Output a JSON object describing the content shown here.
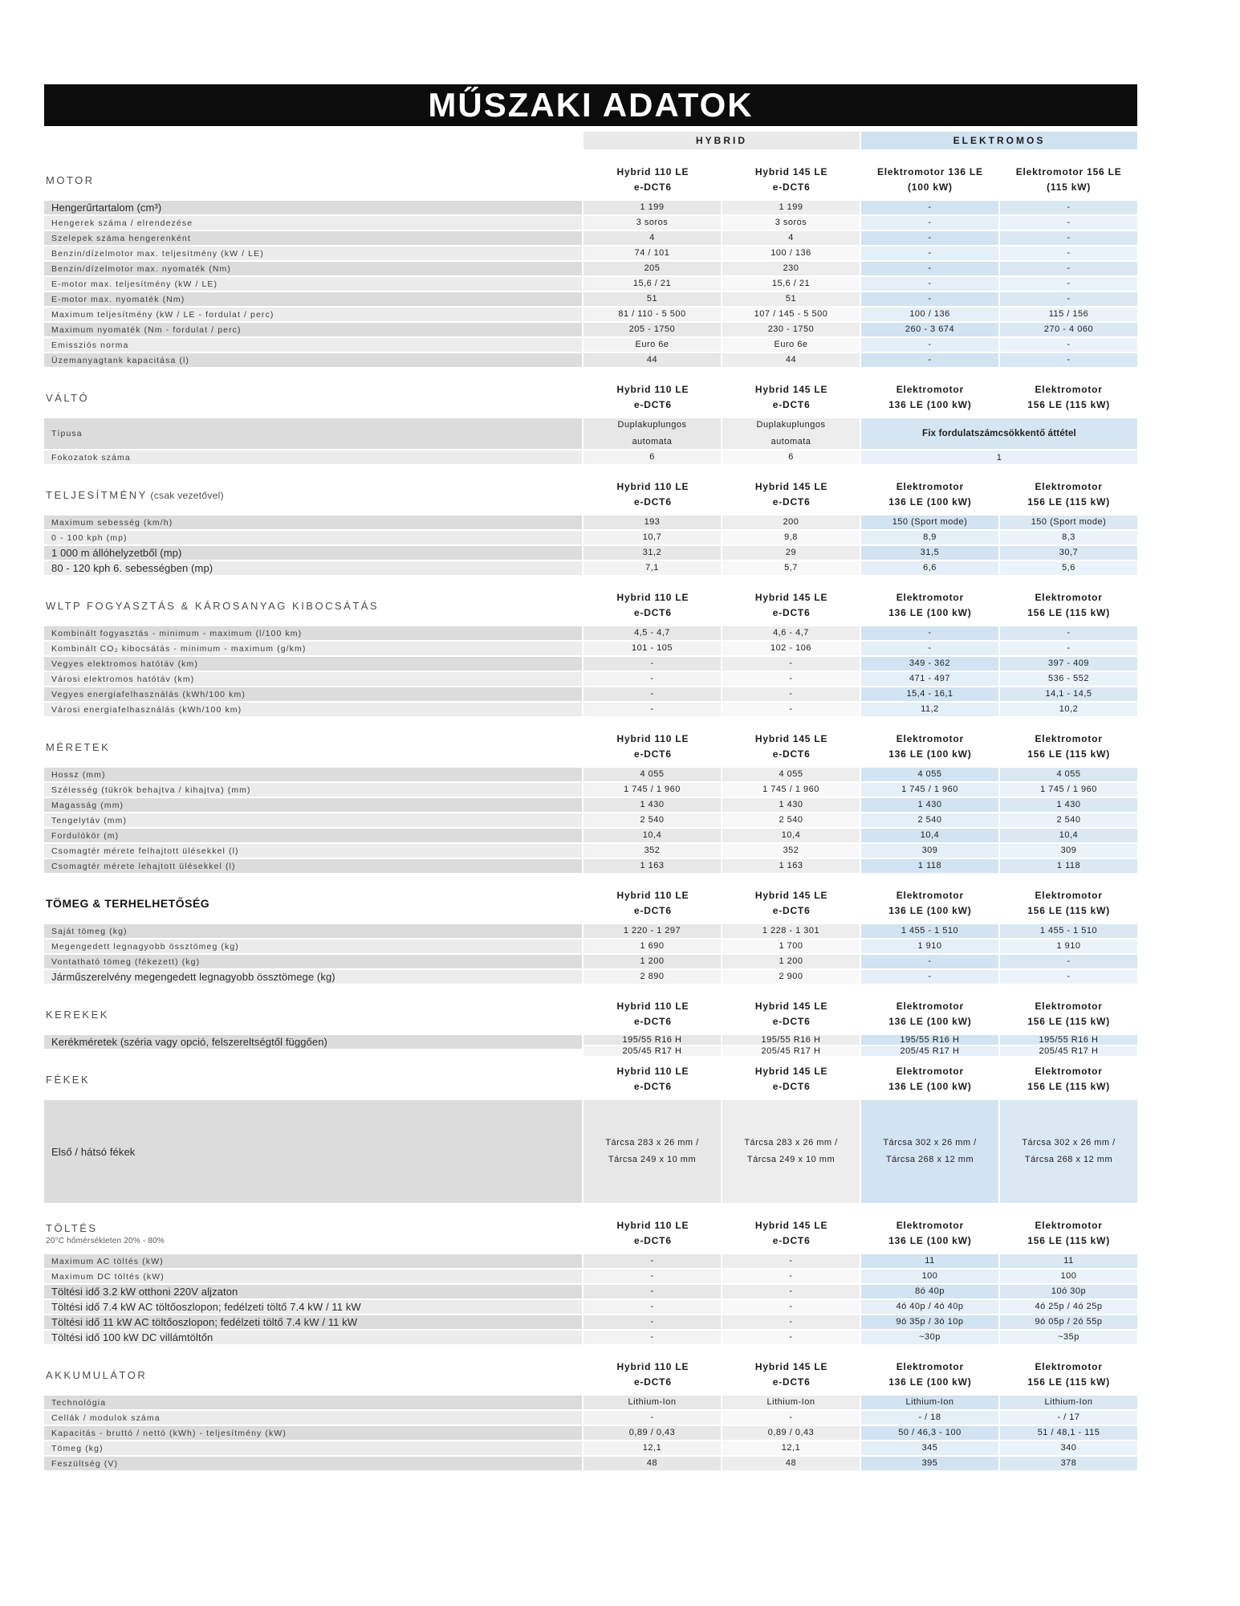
{
  "page": {
    "title": "MŰSZAKI ADATOK"
  },
  "groups": {
    "hybrid": "HYBRID",
    "electric": "ELEKTROMOS"
  },
  "colors": {
    "banner_bg": "#0c0c0c",
    "hybrid_bar_bg": "#e9e9e9",
    "electric_bar_bg": "#cfe2f2",
    "label_row_bg": "#dcdcdc",
    "electric_cell_bg": "#d2e3f1"
  },
  "column_headers": {
    "a": [
      [
        "Hybrid 110 LE",
        "e-DCT6"
      ],
      [
        "Hybrid 145 LE",
        "e-DCT6"
      ],
      [
        "Elektromotor 136 LE",
        "(100 kW)"
      ],
      [
        "Elektromotor 156 LE",
        "(115 kW)"
      ]
    ],
    "b": [
      [
        "Hybrid 110 LE",
        "e-DCT6"
      ],
      [
        "Hybrid 145 LE",
        "e-DCT6"
      ],
      [
        "Elektromotor",
        "136 LE (100 kW)"
      ],
      [
        "Elektromotor",
        "156 LE (115 kW)"
      ]
    ]
  },
  "sections": [
    {
      "id": "motor",
      "title": "MOTOR",
      "header_variant": "a",
      "rows": [
        {
          "label": "Hengerűrtartalom (cm³)",
          "style": "plain",
          "cells": [
            "1 199",
            "1 199",
            "-",
            "-"
          ]
        },
        {
          "label": "Hengerek száma / elrendezése",
          "style": "spaced",
          "cells": [
            "3 soros",
            "3 soros",
            "-",
            "-"
          ]
        },
        {
          "label": "Szelepek száma hengerenként",
          "style": "spaced",
          "cells": [
            "4",
            "4",
            "-",
            "-"
          ]
        },
        {
          "label": "Benzin/dízelmotor max. teljesítmény (kW / LE)",
          "style": "spaced",
          "cells": [
            "74 / 101",
            "100 / 136",
            "-",
            "-"
          ]
        },
        {
          "label": "Benzin/dízelmotor max. nyomaték (Nm)",
          "style": "spaced",
          "cells": [
            "205",
            "230",
            "-",
            "-"
          ]
        },
        {
          "label": "E-motor max. teljesítmény (kW / LE)",
          "style": "spaced",
          "cells": [
            "15,6 / 21",
            "15,6 / 21",
            "-",
            "-"
          ]
        },
        {
          "label": "E-motor max. nyomaték (Nm)",
          "style": "spaced",
          "cells": [
            "51",
            "51",
            "-",
            "-"
          ]
        },
        {
          "label": "Maximum teljesítmény (kW / LE - fordulat / perc)",
          "style": "spaced",
          "cells": [
            "81 / 110 - 5 500",
            "107 / 145 - 5 500",
            "100 / 136",
            "115 / 156"
          ]
        },
        {
          "label": "Maximum nyomaték (Nm - fordulat / perc)",
          "style": "spaced",
          "cells": [
            "205 - 1750",
            "230 - 1750",
            "260 - 3 674",
            "270 - 4 060"
          ]
        },
        {
          "label": "Emissziós norma",
          "style": "spaced",
          "cells": [
            "Euro 6e",
            "Euro 6e",
            "-",
            "-"
          ]
        },
        {
          "label": "Üzemanyagtank kapacitása (l)",
          "style": "spaced",
          "cells": [
            "44",
            "44",
            "-",
            "-"
          ]
        }
      ]
    },
    {
      "id": "valto",
      "title": "VÁLTÓ",
      "header_variant": "b",
      "rows": [
        {
          "type": "tall",
          "h": 38,
          "label": "Típusa",
          "style": "spaced",
          "cells": [
            [
              "Duplakuplungos",
              "automata"
            ],
            [
              "Duplakuplungos",
              "automata"
            ]
          ],
          "span": "Fix fordulatszámcsökkentő áttétel",
          "span_bold": true
        },
        {
          "type": "span",
          "label": "Fokozatok száma",
          "style": "spaced",
          "cells": [
            "6",
            "6"
          ],
          "span": "1"
        }
      ]
    },
    {
      "id": "teljesitmeny",
      "title": "TELJESÍTMÉNY",
      "title_suffix": "(csak vezetővel)",
      "header_variant": "b",
      "rows": [
        {
          "label": "Maximum sebesség (km/h)",
          "style": "spaced",
          "cells": [
            "193",
            "200",
            "150 (Sport mode)",
            "150 (Sport mode)"
          ]
        },
        {
          "label": "0 - 100 kph (mp)",
          "style": "spaced",
          "cells": [
            "10,7",
            "9,8",
            "8,9",
            "8,3"
          ]
        },
        {
          "label": "1 000 m állóhelyzetből (mp)",
          "style": "plain",
          "cells": [
            "31,2",
            "29",
            "31,5",
            "30,7"
          ]
        },
        {
          "label": "80 - 120 kph 6. sebességben (mp)",
          "style": "plain",
          "cells": [
            "7,1",
            "5,7",
            "6,6",
            "5,6"
          ]
        }
      ]
    },
    {
      "id": "wltp",
      "title": "WLTP FOGYASZTÁS & KÁROSANYAG KIBOCSÁTÁS",
      "header_variant": "b",
      "rows": [
        {
          "label": "Kombinált fogyasztás - minimum - maximum (l/100 km)",
          "style": "spaced",
          "cells": [
            "4,5 - 4,7",
            "4,6 - 4,7",
            "-",
            "-"
          ]
        },
        {
          "label": "Kombinált CO₂ kibocsátás - minimum - maximum (g/km)",
          "style": "spaced",
          "cells": [
            "101 - 105",
            "102 - 106",
            "-",
            "-"
          ]
        },
        {
          "label": "Vegyes elektromos hatótáv (km)",
          "style": "spaced",
          "cells": [
            "-",
            "-",
            "349 - 362",
            "397 - 409"
          ]
        },
        {
          "label": "Városi elektromos hatótáv (km)",
          "style": "spaced",
          "cells": [
            "-",
            "-",
            "471 - 497",
            "536 - 552"
          ]
        },
        {
          "label": "Vegyes energiafelhasználás (kWh/100 km)",
          "style": "spaced",
          "cells": [
            "-",
            "-",
            "15,4 - 16,1",
            "14,1 - 14,5"
          ]
        },
        {
          "label": "Városi energiafelhasználás (kWh/100 km)",
          "style": "spaced",
          "cells": [
            "-",
            "-",
            "11,2",
            "10,2"
          ]
        }
      ]
    },
    {
      "id": "meretek",
      "title": "MÉRETEK",
      "header_variant": "b",
      "rows": [
        {
          "label": "Hossz (mm)",
          "style": "spaced",
          "cells": [
            "4 055",
            "4 055",
            "4 055",
            "4 055"
          ]
        },
        {
          "label": "Szélesség (tükrök behajtva / kihajtva) (mm)",
          "style": "spaced",
          "cells": [
            "1 745 / 1 960",
            "1 745 / 1 960",
            "1 745 / 1 960",
            "1 745 / 1 960"
          ]
        },
        {
          "label": "Magasság (mm)",
          "style": "spaced",
          "cells": [
            "1 430",
            "1 430",
            "1 430",
            "1 430"
          ]
        },
        {
          "label": "Tengelytáv (mm)",
          "style": "spaced",
          "cells": [
            "2 540",
            "2 540",
            "2 540",
            "2 540"
          ]
        },
        {
          "label": "Fordulókör (m)",
          "style": "spaced",
          "cells": [
            "10,4",
            "10,4",
            "10,4",
            "10,4"
          ]
        },
        {
          "label": "Csomagtér mérete felhajtott ülésekkel (l)",
          "style": "spaced",
          "cells": [
            "352",
            "352",
            "309",
            "309"
          ]
        },
        {
          "label": "Csomagtér mérete lehajtott ülésekkel (l)",
          "style": "spaced",
          "cells": [
            "1 163",
            "1 163",
            "1 118",
            "1 118"
          ]
        }
      ]
    },
    {
      "id": "tomeg",
      "title": "TÖMEG & TERHELHETŐSÉG",
      "bold": true,
      "header_variant": "b",
      "rows": [
        {
          "label": "Saját tömeg (kg)",
          "style": "spaced",
          "cells": [
            "1 220 - 1 297",
            "1 228 - 1 301",
            "1 455 - 1 510",
            "1 455 - 1 510"
          ]
        },
        {
          "label": "Megengedett legnagyobb össztömeg (kg)",
          "style": "spaced",
          "cells": [
            "1 690",
            "1 700",
            "1 910",
            "1 910"
          ]
        },
        {
          "label": "Vontatható tömeg (fékezett) (kg)",
          "style": "spaced",
          "cells": [
            "1 200",
            "1 200",
            "-",
            "-"
          ]
        },
        {
          "label": "Járműszerelvény megengedett legnagyobb össztömege (kg)",
          "style": "plain",
          "cells": [
            "2 890",
            "2 900",
            "-",
            "-"
          ]
        }
      ]
    },
    {
      "id": "kerekek",
      "title": "KEREKEK",
      "header_variant": "b",
      "rows": [
        {
          "type": "lines2",
          "label": "Kerékméretek (széria vagy opció, felszereltségtől függően)",
          "style": "plain",
          "cells": [
            [
              "195/55 R16 H",
              "205/45 R17 H"
            ],
            [
              "195/55 R16 H",
              "205/45 R17 H"
            ],
            [
              "195/55 R16 H",
              "205/45 R17 H"
            ],
            [
              "195/55 R16 H",
              "205/45 R17 H"
            ]
          ]
        }
      ]
    },
    {
      "id": "fekek",
      "title": "FÉKEK",
      "header_variant": "b",
      "rows": [
        {
          "type": "tall",
          "h": 128,
          "label": "Első / hátsó fékek",
          "style": "plain",
          "cells": [
            [
              "Tárcsa 283 x 26 mm /",
              "Tárcsa 249 x 10 mm"
            ],
            [
              "Tárcsa 283 x 26 mm /",
              "Tárcsa 249 x 10 mm"
            ],
            [
              "Tárcsa 302 x 26 mm /",
              "Tárcsa 268 x 12 mm"
            ],
            [
              "Tárcsa 302 x 26 mm /",
              "Tárcsa 268 x 12 mm"
            ]
          ]
        }
      ]
    },
    {
      "id": "toltes",
      "title": "TÖLTÉS",
      "subtitle": "20°C hőmérsékleten 20% - 80%",
      "header_variant": "b",
      "rows": [
        {
          "label": "Maximum AC töltés (kW)",
          "style": "spaced",
          "cells": [
            "-",
            "-",
            "11",
            "11"
          ]
        },
        {
          "label": "Maximum DC töltés (kW)",
          "style": "spaced",
          "cells": [
            "-",
            "-",
            "100",
            "100"
          ]
        },
        {
          "label": "Töltési idő 3.2 kW otthoni 220V aljzaton",
          "style": "plain",
          "cells": [
            "-",
            "-",
            "8ó 40p",
            "10ó 30p"
          ]
        },
        {
          "label": "Töltési idő 7.4 kW AC töltőoszlopon; fedélzeti töltő 7.4 kW / 11 kW",
          "style": "plain",
          "cells": [
            "-",
            "-",
            "4ó 40p / 4ó 40p",
            "4ó 25p / 4ó 25p"
          ]
        },
        {
          "label": "Töltési idő 11 kW AC töltőoszlopon; fedélzeti töltő 7.4 kW / 11 kW",
          "style": "plain",
          "cells": [
            "-",
            "-",
            "9ó 35p / 3ó 10p",
            "9ó 05p / 2ó 55p"
          ]
        },
        {
          "label": "Töltési idő 100 kW DC villámtöltőn",
          "style": "plain",
          "cells": [
            "-",
            "-",
            "~30p",
            "~35p"
          ]
        }
      ]
    },
    {
      "id": "akkumulator",
      "title": "AKKUMULÁTOR",
      "header_variant": "b",
      "rows": [
        {
          "label": "Technológia",
          "style": "spaced",
          "cells": [
            "Lithium-Ion",
            "Lithium-Ion",
            "Lithium-Ion",
            "Lithium-Ion"
          ]
        },
        {
          "label": "Cellák / modulok száma",
          "style": "spaced",
          "cells": [
            "-",
            "-",
            "- / 18",
            "- / 17"
          ]
        },
        {
          "label": "Kapacitás - bruttó / nettó (kWh) - teljesítmény (kW)",
          "style": "spaced",
          "cells": [
            "0,89 / 0,43",
            "0,89 / 0,43",
            "50 / 46,3 - 100",
            "51 / 48,1 - 115"
          ]
        },
        {
          "label": "Tömeg (kg)",
          "style": "spaced",
          "cells": [
            "12,1",
            "12,1",
            "345",
            "340"
          ]
        },
        {
          "label": "Feszültség (V)",
          "style": "spaced",
          "cells": [
            "48",
            "48",
            "395",
            "378"
          ]
        }
      ]
    }
  ]
}
